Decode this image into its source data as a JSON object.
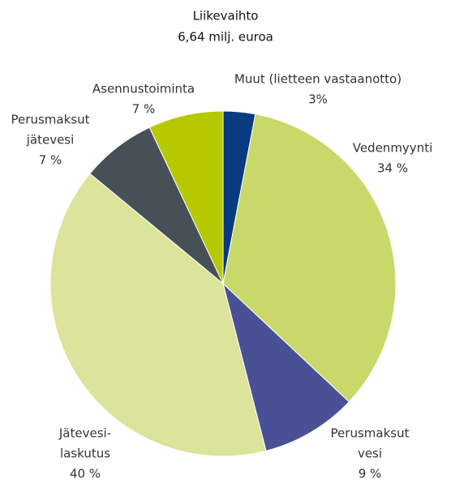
{
  "chart_data": {
    "type": "pie",
    "title": "Liikevaihto",
    "subtitle": "6,64 milj. euroa",
    "categories": [
      [
        "Muut (lietteen vastaanotto)"
      ],
      [
        "Vedenmyynti"
      ],
      [
        "Perusmaksut",
        "vesi"
      ],
      [
        "Jätevesi-",
        "laskutus"
      ],
      [
        "Perusmaksut",
        "jätevesi"
      ],
      [
        "Asennustoiminta"
      ]
    ],
    "values": [
      3,
      34,
      9,
      40,
      7,
      7
    ],
    "value_labels": [
      "3%",
      "34 %",
      "9 %",
      "40 %",
      "7 %",
      "7 %"
    ],
    "colors": [
      "#0a3a7f",
      "#c8d96a",
      "#4a5096",
      "#dce39a",
      "#474f57",
      "#b5c800"
    ]
  }
}
